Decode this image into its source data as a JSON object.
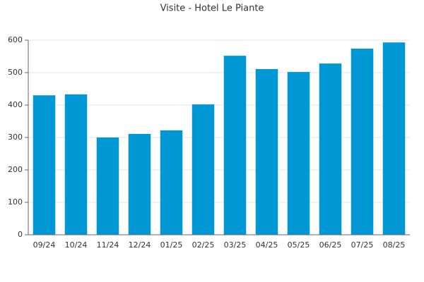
{
  "chart_data": {
    "type": "bar",
    "title": "Visite - Hotel Le Piante",
    "categories": [
      "09/24",
      "10/24",
      "11/24",
      "12/24",
      "01/25",
      "02/25",
      "03/25",
      "04/25",
      "05/25",
      "06/25",
      "07/25",
      "08/25"
    ],
    "values": [
      430,
      433,
      300,
      311,
      322,
      402,
      552,
      511,
      502,
      528,
      574,
      593
    ],
    "color": "#0098d4",
    "ylim": [
      0,
      600
    ],
    "yticks": [
      0,
      100,
      200,
      300,
      400,
      500,
      600
    ],
    "grid": true
  }
}
